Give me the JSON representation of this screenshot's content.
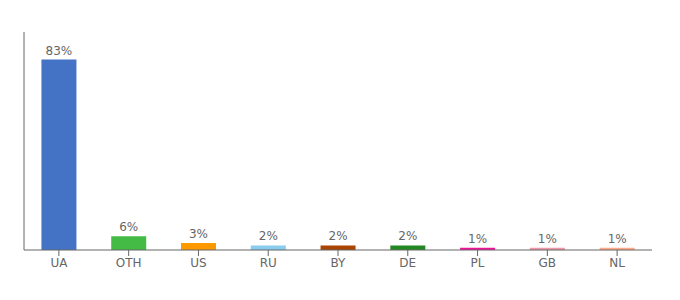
{
  "chart_data": {
    "type": "bar",
    "categories": [
      "UA",
      "OTH",
      "US",
      "RU",
      "BY",
      "DE",
      "PL",
      "GB",
      "NL"
    ],
    "values": [
      83,
      6,
      3,
      2,
      2,
      2,
      1,
      1,
      1
    ],
    "value_labels": [
      "83%",
      "6%",
      "3%",
      "2%",
      "2%",
      "2%",
      "1%",
      "1%",
      "1%"
    ],
    "colors": [
      "#4472c4",
      "#44bb44",
      "#ff9900",
      "#88ccee",
      "#aa4400",
      "#228822",
      "#ee1199",
      "#ee99aa",
      "#ffaa88"
    ],
    "ylim": [
      0,
      95
    ],
    "grid": false,
    "data_labels": true,
    "tick_labels": "x"
  }
}
